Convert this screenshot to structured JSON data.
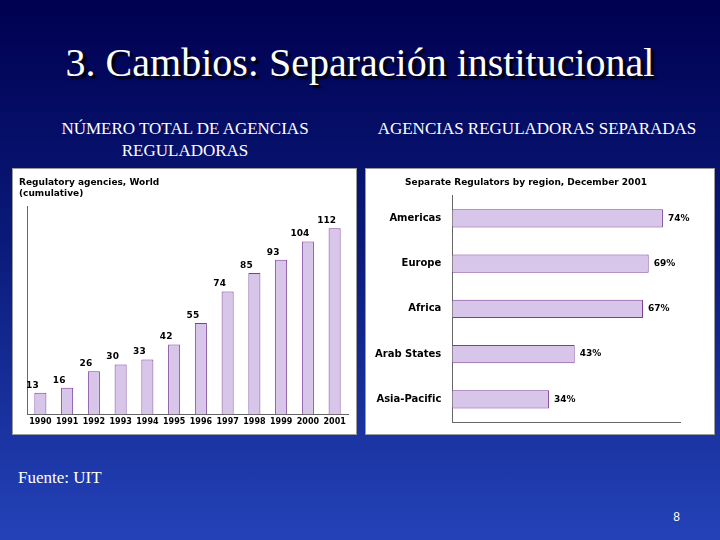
{
  "slide": {
    "title": "3. Cambios: Separación institucional",
    "panel_headings": [
      "NÚMERO TOTAL DE AGENCIAS REGULADORAS",
      "AGENCIAS REGULADORAS SEPARADAS"
    ],
    "source": "Fuente: UIT",
    "page": "8"
  },
  "chart_data": [
    {
      "type": "bar",
      "title": "Regulatory agencies, World",
      "subtitle": "(cumulative)",
      "categories": [
        "1990",
        "1991",
        "1992",
        "1993",
        "1994",
        "1995",
        "1996",
        "1997",
        "1998",
        "1999",
        "2000",
        "2001"
      ],
      "values": [
        13,
        16,
        26,
        30,
        33,
        42,
        55,
        74,
        85,
        93,
        104,
        112
      ],
      "color": "#d8c6ea",
      "ylim": [
        0,
        125
      ],
      "grid": false,
      "data_labels": true,
      "tick_labels": "x"
    },
    {
      "type": "bar",
      "orientation": "horizontal",
      "title": "Separate Regulators by region, December 2001",
      "categories": [
        "Americas",
        "Europe",
        "Africa",
        "Arab States",
        "Asia-Pacific"
      ],
      "values": [
        74,
        69,
        67,
        43,
        34
      ],
      "value_labels": [
        "74%",
        "69%",
        "67%",
        "43%",
        "34%"
      ],
      "color": "#d8c6ea",
      "xlim": [
        0,
        80
      ],
      "grid": false,
      "data_labels": true,
      "tick_labels": "y"
    }
  ]
}
